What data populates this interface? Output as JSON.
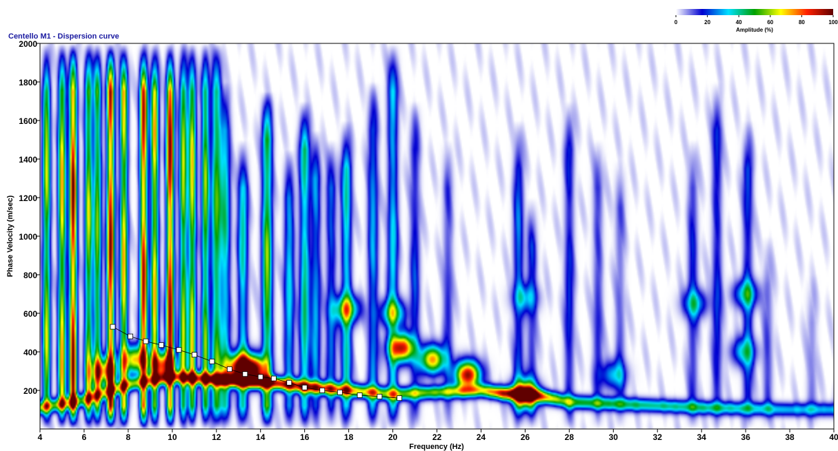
{
  "chart_data": {
    "type": "heatmap",
    "title": "Centello M1 - Dispersion curve",
    "xlabel": "Frequency (Hz)",
    "ylabel": "Phase Velocity (m/sec)",
    "xlim": [
      4,
      40
    ],
    "ylim": [
      0,
      2000
    ],
    "x_ticks": [
      "4",
      "6",
      "8",
      "10",
      "12",
      "14",
      "16",
      "18",
      "20",
      "22",
      "24",
      "26",
      "28",
      "30",
      "32",
      "34",
      "36",
      "38",
      "40"
    ],
    "y_ticks": [
      "200",
      "400",
      "600",
      "800",
      "1000",
      "1200",
      "1400",
      "1600",
      "1800",
      "2000"
    ],
    "grid": false,
    "colorbar": {
      "label": "Amplitude (%)",
      "ticks": [
        "0",
        "20",
        "40",
        "60",
        "80",
        "100"
      ],
      "placement": "top-right",
      "colors": [
        "#ffffff",
        "#0000d0",
        "#00e0ff",
        "#00a000",
        "#ffff00",
        "#ff2000",
        "#600000"
      ]
    },
    "dispersion_curve": {
      "x": [
        7.3,
        8.1,
        8.8,
        9.5,
        10.3,
        11.0,
        11.8,
        12.6,
        13.3,
        14.0,
        14.6,
        15.3,
        16.0,
        16.8,
        17.6,
        18.5,
        19.4,
        20.3
      ],
      "y": [
        530,
        480,
        455,
        435,
        410,
        385,
        350,
        310,
        285,
        270,
        262,
        240,
        215,
        200,
        190,
        175,
        168,
        160
      ]
    },
    "vertical_bands": [
      {
        "f": 4.3,
        "top": 2000,
        "peak": 65
      },
      {
        "f": 5.0,
        "top": 2000,
        "peak": 75
      },
      {
        "f": 5.5,
        "top": 2000,
        "peak": 100
      },
      {
        "f": 6.2,
        "top": 2000,
        "peak": 65
      },
      {
        "f": 6.6,
        "top": 2000,
        "peak": 60
      },
      {
        "f": 7.2,
        "top": 2000,
        "peak": 100
      },
      {
        "f": 7.8,
        "top": 2000,
        "peak": 75
      },
      {
        "f": 8.7,
        "top": 2000,
        "peak": 95
      },
      {
        "f": 9.2,
        "top": 2000,
        "peak": 75
      },
      {
        "f": 9.9,
        "top": 2000,
        "peak": 100
      },
      {
        "f": 10.5,
        "top": 2000,
        "peak": 65
      },
      {
        "f": 10.9,
        "top": 2000,
        "peak": 70
      },
      {
        "f": 11.5,
        "top": 2000,
        "peak": 60
      },
      {
        "f": 12.0,
        "top": 2000,
        "peak": 55
      },
      {
        "f": 12.4,
        "top": 1800,
        "peak": 40
      },
      {
        "f": 13.2,
        "top": 1500,
        "peak": 40
      },
      {
        "f": 14.3,
        "top": 1750,
        "peak": 60
      },
      {
        "f": 15.3,
        "top": 1450,
        "peak": 35
      },
      {
        "f": 16.0,
        "top": 1700,
        "peak": 45
      },
      {
        "f": 16.5,
        "top": 1550,
        "peak": 30
      },
      {
        "f": 17.2,
        "top": 1500,
        "peak": 25
      },
      {
        "f": 17.9,
        "top": 1600,
        "peak": 40
      },
      {
        "f": 19.1,
        "top": 1800,
        "peak": 30
      },
      {
        "f": 20.0,
        "top": 2000,
        "peak": 35
      },
      {
        "f": 21.0,
        "top": 1700,
        "peak": 20
      },
      {
        "f": 22.5,
        "top": 1500,
        "peak": 15
      },
      {
        "f": 25.7,
        "top": 1600,
        "peak": 25
      },
      {
        "f": 26.3,
        "top": 1200,
        "peak": 18
      },
      {
        "f": 28.0,
        "top": 1700,
        "peak": 20
      },
      {
        "f": 29.3,
        "top": 1500,
        "peak": 15
      },
      {
        "f": 30.3,
        "top": 1400,
        "peak": 12
      },
      {
        "f": 33.6,
        "top": 1500,
        "peak": 18
      },
      {
        "f": 34.7,
        "top": 1800,
        "peak": 20
      },
      {
        "f": 36.1,
        "top": 1600,
        "peak": 22
      },
      {
        "f": 37.0,
        "top": 1000,
        "peak": 12
      },
      {
        "f": 39.0,
        "top": 800,
        "peak": 10
      }
    ],
    "hot_spots": [
      {
        "f": 13.7,
        "v": 310,
        "peak": 95
      },
      {
        "f": 13.0,
        "v": 320,
        "peak": 90
      },
      {
        "f": 20.4,
        "v": 420,
        "peak": 90
      },
      {
        "f": 21.8,
        "v": 360,
        "peak": 75
      },
      {
        "f": 23.4,
        "v": 280,
        "peak": 95
      },
      {
        "f": 17.9,
        "v": 620,
        "peak": 55
      },
      {
        "f": 20.0,
        "v": 600,
        "peak": 45
      },
      {
        "f": 9.6,
        "v": 330,
        "peak": 80
      },
      {
        "f": 8.3,
        "v": 360,
        "peak": 70
      },
      {
        "f": 6.9,
        "v": 300,
        "peak": 65
      },
      {
        "f": 26.0,
        "v": 180,
        "peak": 85
      },
      {
        "f": 30.0,
        "v": 280,
        "peak": 30
      },
      {
        "f": 33.7,
        "v": 650,
        "peak": 30
      },
      {
        "f": 36.0,
        "v": 700,
        "peak": 35
      },
      {
        "f": 35.9,
        "v": 400,
        "peak": 30
      },
      {
        "f": 26.0,
        "v": 680,
        "peak": 25
      }
    ],
    "fundamental_ridge": {
      "x": [
        4.0,
        6.0,
        8.0,
        10.0,
        11.5,
        13.0,
        14.5,
        16.0,
        18.0,
        20.0,
        22.0,
        24.0,
        25.0,
        26.5,
        28.0,
        30.0,
        32.0,
        34.0,
        36.0,
        38.0,
        40.0
      ],
      "y": [
        110,
        150,
        230,
        270,
        260,
        250,
        240,
        220,
        200,
        180,
        190,
        200,
        185,
        175,
        140,
        130,
        120,
        110,
        105,
        100,
        100
      ],
      "peak": [
        55,
        50,
        55,
        65,
        85,
        95,
        90,
        85,
        70,
        55,
        55,
        60,
        90,
        80,
        50,
        45,
        40,
        40,
        35,
        30,
        30
      ]
    }
  }
}
